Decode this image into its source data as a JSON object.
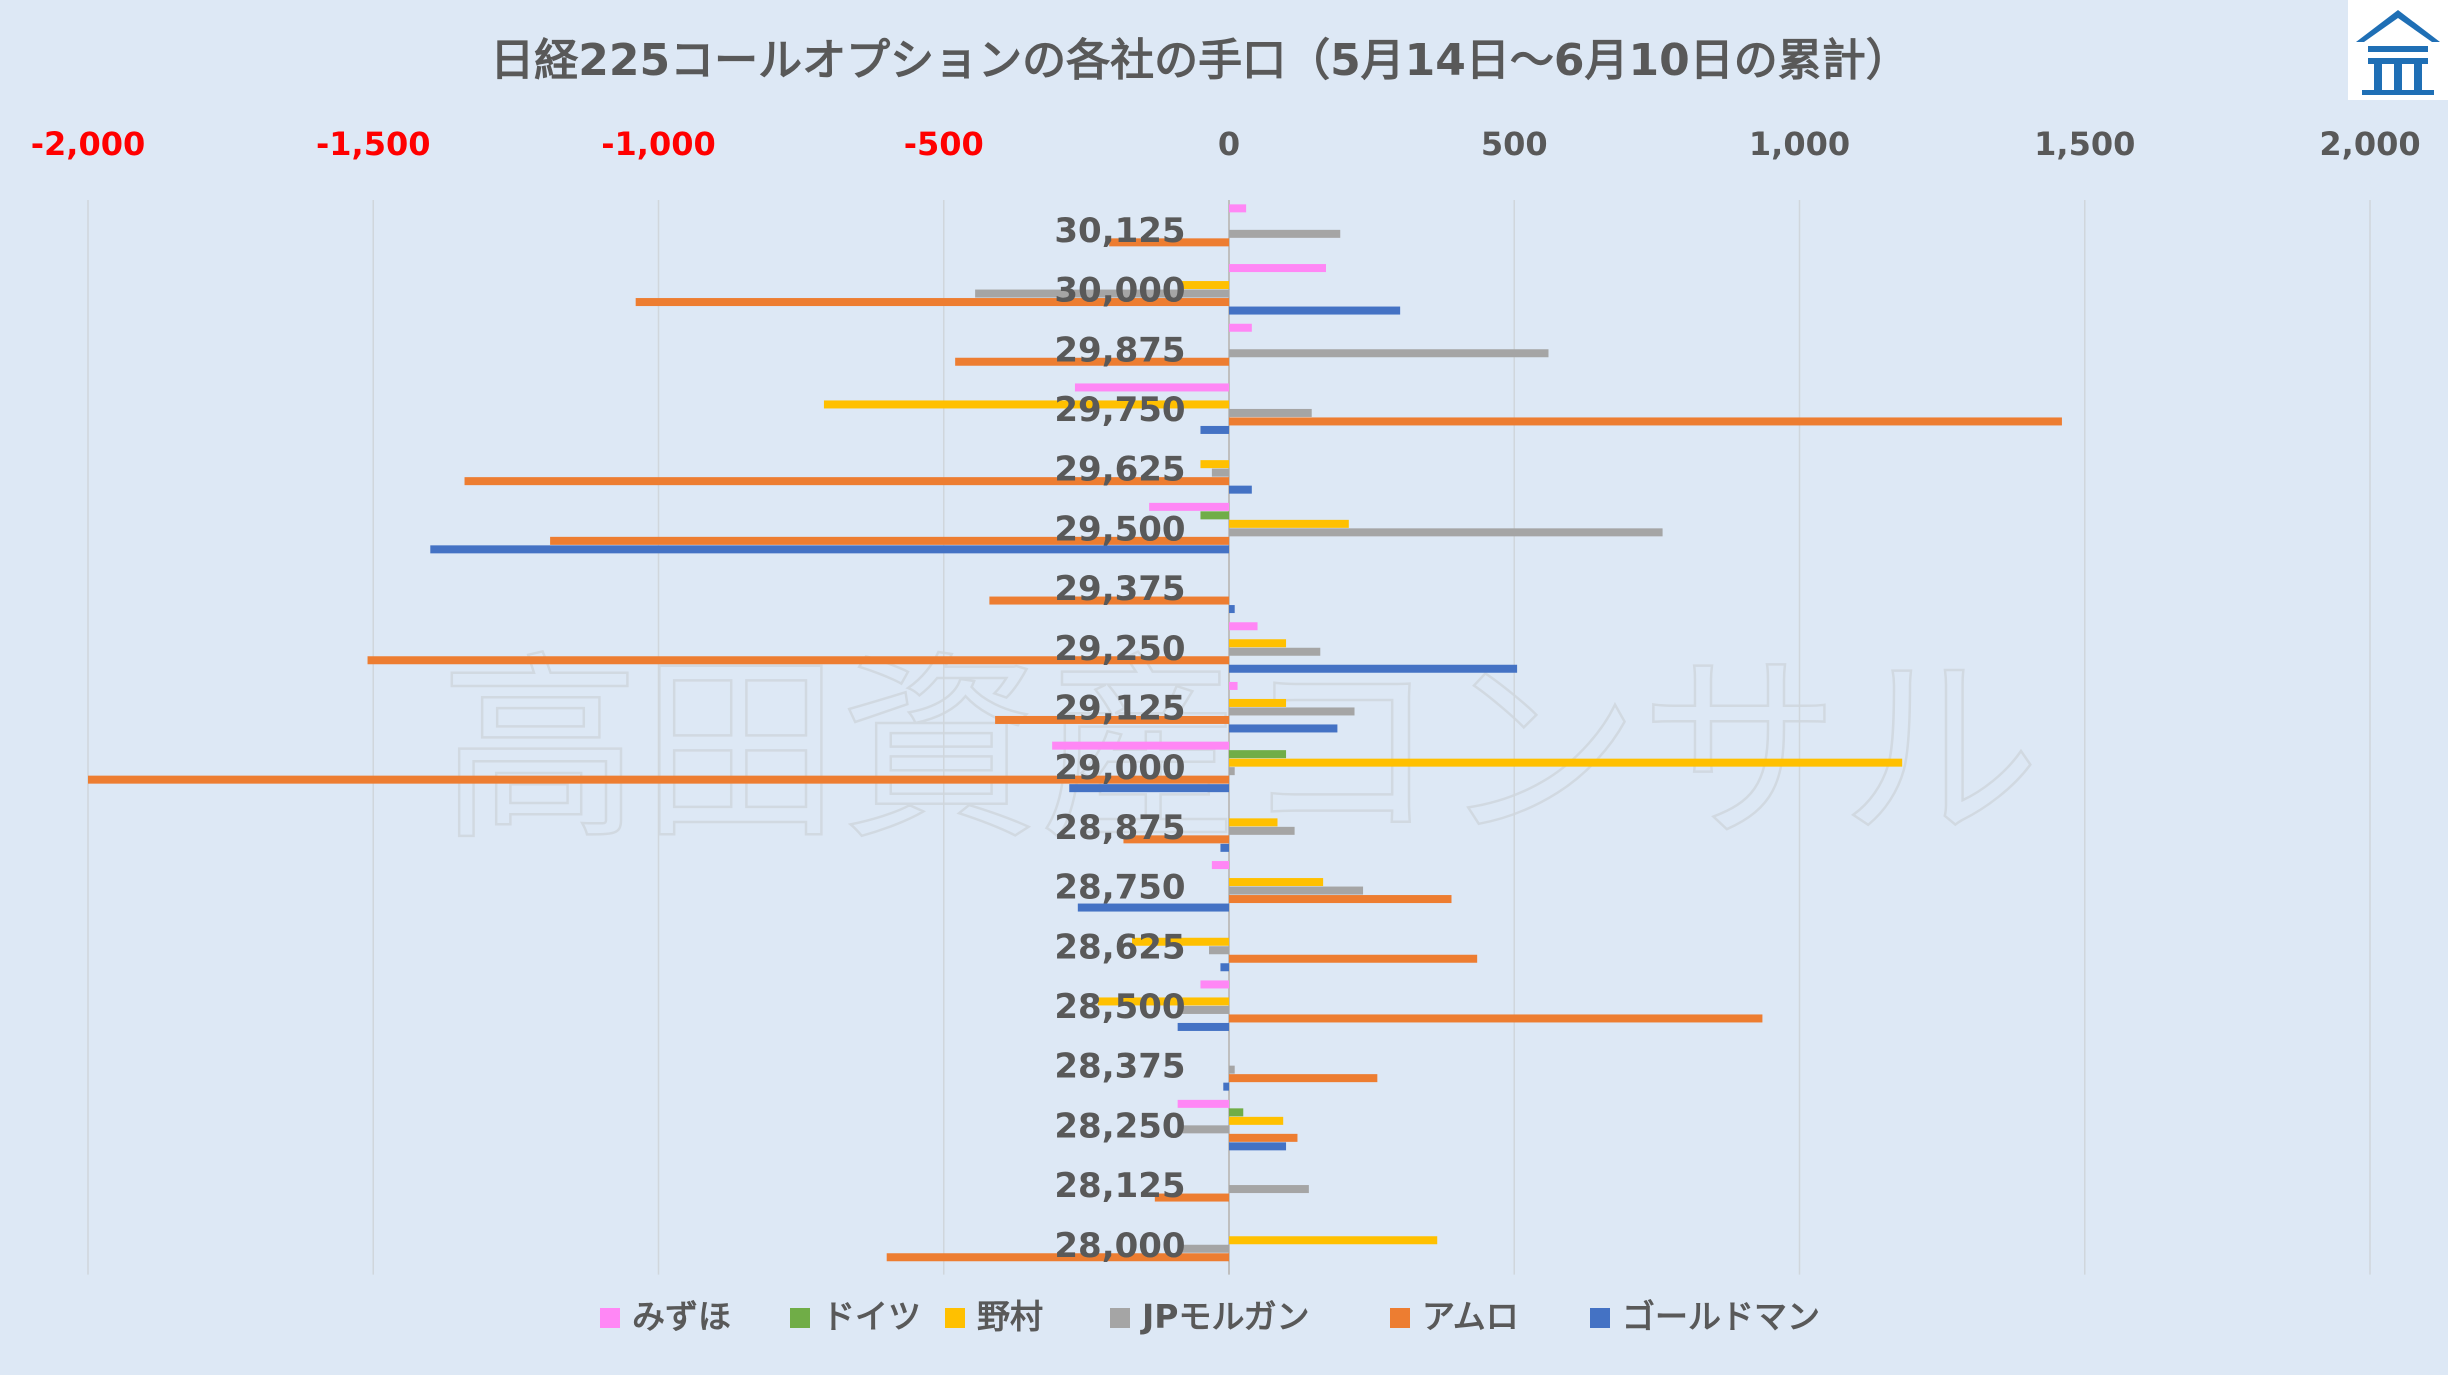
{
  "chart_data": {
    "type": "bar",
    "orientation": "horizontal",
    "title": "日経225コールオプションの各社の手口（5月14日～6月10日の累計）",
    "watermark": "高田資産コンサル",
    "xlim": [
      -2000,
      2000
    ],
    "xticks": [
      -2000,
      -1500,
      -1000,
      -500,
      0,
      500,
      1000,
      1500,
      2000
    ],
    "xtick_labels": [
      "-2,000",
      "-1,500",
      "-1,000",
      "-500",
      "0",
      "500",
      "1,000",
      "1,500",
      "2,000"
    ],
    "negative_tick_color": "#ff0000",
    "positive_tick_color": "#595959",
    "grid": true,
    "legend_position": "bottom",
    "categories": [
      "30,125",
      "30,000",
      "29,875",
      "29,750",
      "29,625",
      "29,500",
      "29,375",
      "29,250",
      "29,125",
      "29,000",
      "28,875",
      "28,750",
      "28,625",
      "28,500",
      "28,375",
      "28,250",
      "28,125",
      "28,000"
    ],
    "series": [
      {
        "name": "みずほ",
        "color": "#ff87f5",
        "values": [
          30,
          170,
          40,
          -270,
          0,
          -140,
          0,
          50,
          15,
          -310,
          0,
          -30,
          0,
          -50,
          0,
          -90,
          0,
          0
        ]
      },
      {
        "name": "ドイツ",
        "color": "#70ad47",
        "values": [
          0,
          0,
          0,
          0,
          0,
          -50,
          0,
          0,
          0,
          100,
          0,
          0,
          0,
          0,
          0,
          25,
          0,
          0
        ]
      },
      {
        "name": "野村",
        "color": "#ffc000",
        "values": [
          0,
          -90,
          0,
          -710,
          -50,
          210,
          0,
          100,
          100,
          1180,
          85,
          165,
          -170,
          -230,
          0,
          95,
          0,
          365
        ]
      },
      {
        "name": "JPモルガン",
        "color": "#a5a5a5",
        "values": [
          195,
          -445,
          560,
          145,
          -30,
          760,
          0,
          160,
          220,
          10,
          115,
          235,
          -35,
          -90,
          10,
          -90,
          140,
          -90
        ]
      },
      {
        "name": "アムロ",
        "color": "#ed7d31",
        "values": [
          -210,
          -1040,
          -480,
          1460,
          -1340,
          -1190,
          -420,
          -1510,
          -410,
          -2000,
          -185,
          390,
          435,
          935,
          260,
          120,
          -130,
          -600
        ]
      },
      {
        "name": "ゴールドマン",
        "color": "#4472c4",
        "values": [
          0,
          300,
          0,
          -50,
          40,
          -1400,
          10,
          505,
          190,
          -280,
          -15,
          -265,
          -15,
          -90,
          -10,
          100,
          0,
          0
        ]
      }
    ]
  }
}
